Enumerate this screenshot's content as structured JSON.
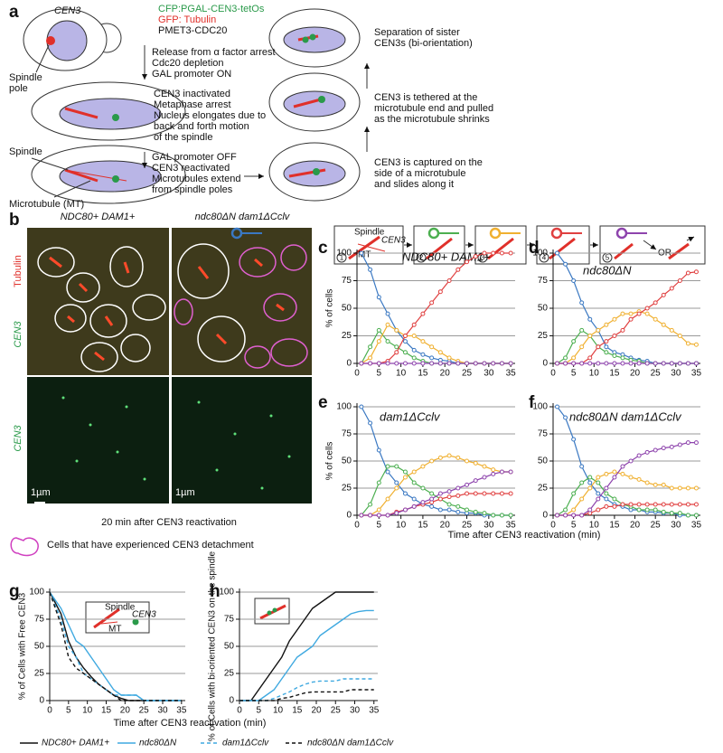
{
  "panel_a": {
    "letter": "a",
    "cen3": "CEN3",
    "construct1": "CFP:PGAL-CEN3-tetOs",
    "construct2": "GFP: Tubulin",
    "construct3": "PMET3-CDC20",
    "spindle_pole": [
      "Spindle",
      "pole"
    ],
    "step1": [
      "Release from α factor arrest",
      "Cdc20 depletion",
      "GAL promoter ON"
    ],
    "step2": [
      "CEN3 inactivated",
      "Metaphase arrest",
      "Nucleus elongates due to",
      "back and forth motion",
      "of the spindle"
    ],
    "spindle": "Spindle",
    "step3": [
      "GAL promoter OFF",
      "CEN3 reactivated",
      "Microtubules extend",
      "from spindle poles"
    ],
    "microtubule": "Microtubule (MT)",
    "capture": [
      "CEN3 is captured on the",
      "side of a microtubule",
      "and slides along it"
    ],
    "tether": [
      "CEN3 is tethered at the",
      "microtubule end and pulled",
      "as the microtubule shrinks"
    ],
    "separation": [
      "Separation of sister",
      "CEN3s (bi-orientation)"
    ]
  },
  "panel_b": {
    "letter": "b",
    "strain1": "NDC80+ DAM1+",
    "strain2": "ndc80ΔN dam1ΔCclv",
    "tubulin": "Tubulin",
    "cen3_top": "CEN3",
    "cen3_bottom": "CEN3",
    "scale1": "1µm",
    "scale2": "1µm",
    "caption": "20 min after CEN3 reactivation",
    "legend": "Cells that have experienced CEN3 detachment"
  },
  "step_icons": {
    "spindle": "Spindle",
    "cen3": "CEN3",
    "mt": "MT",
    "or": "OR"
  },
  "shared_x_label": "Time after CEN3 reactivation (min)",
  "chart_data": [
    {
      "type": "line",
      "letter": "c",
      "title": "NDC80+ DAM1+",
      "ylabel": "% of cells",
      "markers": true,
      "x": [
        1,
        3,
        5,
        7,
        9,
        11,
        13,
        15,
        17,
        19,
        21,
        23,
        25,
        27,
        29,
        31,
        33,
        35
      ],
      "xlim": [
        0,
        36
      ],
      "xticks": [
        0,
        5,
        10,
        15,
        20,
        25,
        30,
        35
      ],
      "ylim": [
        0,
        100
      ],
      "yticks": [
        0,
        25,
        50,
        75,
        100
      ],
      "grid": true,
      "series": [
        {
          "name": "1",
          "color": "#3a78c2",
          "values": [
            100,
            85,
            60,
            45,
            30,
            20,
            12,
            8,
            5,
            3,
            2,
            0,
            0,
            0,
            0,
            0,
            0,
            0
          ]
        },
        {
          "name": "2",
          "color": "#4caf50",
          "values": [
            0,
            15,
            30,
            20,
            15,
            10,
            5,
            2,
            0,
            0,
            0,
            0,
            0,
            0,
            0,
            0,
            0,
            0
          ]
        },
        {
          "name": "3",
          "color": "#f0b030",
          "values": [
            0,
            5,
            20,
            35,
            30,
            25,
            25,
            20,
            15,
            10,
            5,
            2,
            0,
            0,
            0,
            0,
            0,
            0
          ]
        },
        {
          "name": "4",
          "color": "#e04040",
          "values": [
            0,
            0,
            0,
            2,
            10,
            25,
            35,
            45,
            55,
            65,
            75,
            85,
            92,
            97,
            100,
            100,
            100,
            100
          ]
        },
        {
          "name": "5",
          "color": "#8e44ad",
          "values": [
            0,
            0,
            0,
            0,
            0,
            0,
            0,
            0,
            0,
            0,
            0,
            0,
            0,
            0,
            0,
            0,
            0,
            0
          ]
        }
      ]
    },
    {
      "type": "line",
      "letter": "d",
      "title": "ndc80ΔN",
      "markers": true,
      "x": [
        1,
        3,
        5,
        7,
        9,
        11,
        13,
        15,
        17,
        19,
        21,
        23,
        25,
        27,
        29,
        31,
        33,
        35
      ],
      "xlim": [
        0,
        36
      ],
      "xticks": [
        0,
        5,
        10,
        15,
        20,
        25,
        30,
        35
      ],
      "ylim": [
        0,
        100
      ],
      "yticks": [
        0,
        25,
        50,
        75,
        100
      ],
      "grid": true,
      "series": [
        {
          "color": "#3a78c2",
          "values": [
            100,
            90,
            75,
            55,
            40,
            30,
            15,
            10,
            8,
            5,
            3,
            2,
            0,
            0,
            0,
            0,
            0,
            0
          ]
        },
        {
          "color": "#4caf50",
          "values": [
            0,
            5,
            20,
            30,
            25,
            15,
            10,
            7,
            5,
            3,
            2,
            0,
            0,
            0,
            0,
            0,
            0,
            0
          ]
        },
        {
          "color": "#f0b030",
          "values": [
            0,
            0,
            5,
            15,
            25,
            30,
            35,
            40,
            45,
            45,
            47,
            45,
            40,
            35,
            30,
            25,
            18,
            17
          ]
        },
        {
          "color": "#e04040",
          "values": [
            0,
            0,
            0,
            0,
            5,
            15,
            20,
            25,
            30,
            40,
            45,
            50,
            55,
            62,
            68,
            75,
            82,
            83
          ]
        },
        {
          "color": "#8e44ad",
          "values": [
            0,
            0,
            0,
            0,
            0,
            0,
            0,
            0,
            0,
            0,
            0,
            0,
            0,
            0,
            0,
            0,
            0,
            0
          ]
        }
      ]
    },
    {
      "type": "line",
      "letter": "e",
      "title": "dam1ΔCclv",
      "ylabel": "% of cells",
      "markers": true,
      "x": [
        1,
        3,
        5,
        7,
        9,
        11,
        13,
        15,
        17,
        19,
        21,
        23,
        25,
        27,
        29,
        31,
        33,
        35
      ],
      "xlim": [
        0,
        36
      ],
      "xticks": [
        0,
        5,
        10,
        15,
        20,
        25,
        30,
        35
      ],
      "ylim": [
        0,
        100
      ],
      "yticks": [
        0,
        25,
        50,
        75,
        100
      ],
      "grid": true,
      "series": [
        {
          "color": "#3a78c2",
          "values": [
            100,
            85,
            60,
            40,
            30,
            20,
            15,
            10,
            8,
            5,
            5,
            3,
            2,
            2,
            0,
            0,
            0,
            0
          ]
        },
        {
          "color": "#4caf50",
          "values": [
            0,
            10,
            30,
            45,
            45,
            40,
            30,
            25,
            20,
            15,
            10,
            8,
            5,
            3,
            2,
            0,
            0,
            0
          ]
        },
        {
          "color": "#f0b030",
          "values": [
            0,
            0,
            5,
            15,
            25,
            35,
            40,
            45,
            50,
            53,
            55,
            53,
            50,
            48,
            45,
            42,
            40,
            40
          ]
        },
        {
          "color": "#e04040",
          "values": [
            0,
            0,
            0,
            0,
            3,
            5,
            8,
            10,
            12,
            15,
            17,
            18,
            20,
            20,
            20,
            20,
            20,
            20
          ]
        },
        {
          "color": "#8e44ad",
          "values": [
            0,
            0,
            0,
            0,
            2,
            5,
            8,
            12,
            15,
            20,
            22,
            25,
            28,
            32,
            35,
            38,
            40,
            40
          ]
        }
      ]
    },
    {
      "type": "line",
      "letter": "f",
      "title": "ndc80ΔN dam1ΔCclv",
      "markers": true,
      "x": [
        1,
        3,
        5,
        7,
        9,
        11,
        13,
        15,
        17,
        19,
        21,
        23,
        25,
        27,
        29,
        31,
        33,
        35
      ],
      "xlim": [
        0,
        36
      ],
      "xticks": [
        0,
        5,
        10,
        15,
        20,
        25,
        30,
        35
      ],
      "ylim": [
        0,
        100
      ],
      "yticks": [
        0,
        25,
        50,
        75,
        100
      ],
      "grid": true,
      "series": [
        {
          "color": "#3a78c2",
          "values": [
            100,
            90,
            70,
            45,
            30,
            20,
            15,
            10,
            8,
            5,
            5,
            3,
            3,
            2,
            2,
            0,
            0,
            0
          ]
        },
        {
          "color": "#4caf50",
          "values": [
            0,
            5,
            20,
            30,
            35,
            30,
            20,
            15,
            10,
            8,
            5,
            5,
            5,
            3,
            2,
            2,
            0,
            0
          ]
        },
        {
          "color": "#f0b030",
          "values": [
            0,
            0,
            5,
            15,
            25,
            35,
            38,
            40,
            38,
            35,
            33,
            30,
            28,
            28,
            25,
            25,
            25,
            25
          ]
        },
        {
          "color": "#e04040",
          "values": [
            0,
            0,
            0,
            0,
            2,
            5,
            8,
            8,
            10,
            10,
            10,
            10,
            10,
            10,
            10,
            10,
            10,
            10
          ]
        },
        {
          "color": "#8e44ad",
          "values": [
            0,
            0,
            0,
            0,
            5,
            15,
            25,
            35,
            45,
            50,
            55,
            58,
            60,
            62,
            63,
            65,
            67,
            67
          ]
        }
      ]
    },
    {
      "type": "line",
      "letter": "g",
      "ylabel": "% of Cells with Free CEN3",
      "xlabel": "Time after CEN3 reactivation (min)",
      "x": [
        0,
        3,
        5,
        7,
        9,
        11,
        13,
        15,
        17,
        19,
        21,
        23,
        25,
        27,
        29,
        31,
        33,
        35
      ],
      "xlim": [
        0,
        36
      ],
      "xticks": [
        0,
        5,
        10,
        15,
        20,
        25,
        30,
        35
      ],
      "ylim": [
        0,
        100
      ],
      "yticks": [
        0,
        25,
        50,
        75,
        100
      ],
      "grid": true,
      "series": [
        {
          "name": "NDC80+ DAM1+",
          "color": "#111111",
          "dash": false,
          "values": [
            100,
            80,
            55,
            40,
            30,
            22,
            15,
            10,
            5,
            2,
            0,
            0,
            0,
            0,
            0,
            0,
            0,
            0
          ]
        },
        {
          "name": "ndc80ΔN",
          "color": "#3fa9e0",
          "dash": false,
          "values": [
            100,
            85,
            70,
            55,
            50,
            40,
            30,
            20,
            10,
            5,
            5,
            5,
            0,
            0,
            0,
            0,
            0,
            0
          ]
        },
        {
          "name": "dam1ΔCclv",
          "color": "#3fa9e0",
          "dash": true,
          "values": [
            100,
            75,
            50,
            40,
            25,
            20,
            15,
            10,
            5,
            5,
            5,
            5,
            0,
            0,
            0,
            0,
            0,
            0
          ]
        },
        {
          "name": "ndc80ΔN dam1ΔCclv",
          "color": "#111111",
          "dash": true,
          "values": [
            100,
            70,
            40,
            30,
            25,
            20,
            15,
            10,
            5,
            0,
            0,
            0,
            0,
            0,
            0,
            0,
            0,
            0
          ]
        }
      ]
    },
    {
      "type": "line",
      "letter": "h",
      "ylabel": "% of Cells with bi-oriented CEN3 on the spindle",
      "x": [
        0,
        3,
        5,
        7,
        9,
        11,
        13,
        15,
        17,
        19,
        21,
        23,
        25,
        27,
        29,
        31,
        33,
        35
      ],
      "xlim": [
        0,
        36
      ],
      "xticks": [
        0,
        5,
        10,
        15,
        20,
        25,
        30,
        35
      ],
      "ylim": [
        0,
        100
      ],
      "yticks": [
        0,
        25,
        50,
        75,
        100
      ],
      "grid": true,
      "series": [
        {
          "color": "#111111",
          "dash": false,
          "values": [
            0,
            0,
            10,
            20,
            30,
            40,
            55,
            65,
            75,
            85,
            90,
            95,
            100,
            100,
            100,
            100,
            100,
            100
          ]
        },
        {
          "color": "#3fa9e0",
          "dash": false,
          "values": [
            0,
            0,
            0,
            5,
            10,
            20,
            30,
            40,
            45,
            50,
            60,
            65,
            70,
            75,
            80,
            82,
            83,
            83
          ]
        },
        {
          "color": "#3fa9e0",
          "dash": true,
          "values": [
            0,
            0,
            0,
            0,
            2,
            5,
            8,
            12,
            15,
            17,
            18,
            18,
            18,
            20,
            20,
            20,
            20,
            20
          ]
        },
        {
          "color": "#111111",
          "dash": true,
          "values": [
            0,
            0,
            0,
            0,
            0,
            2,
            3,
            5,
            7,
            8,
            8,
            8,
            8,
            8,
            10,
            10,
            10,
            10
          ]
        }
      ]
    }
  ]
}
